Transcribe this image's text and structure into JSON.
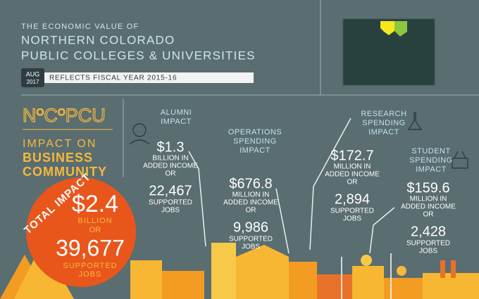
{
  "header": {
    "kicker": "THE ECONOMIC VALUE OF",
    "title_lines": [
      "NORTHERN COLORADO",
      "PUBLIC COLLEGES & UNIVERSITIES"
    ],
    "date_month": "AUG",
    "date_year": "2017",
    "fiscal_note": "REFLECTS FISCAL YEAR 2015-16"
  },
  "brand": {
    "parts": [
      "N",
      "O",
      "C",
      "O",
      "PCU"
    ],
    "heading_lines": [
      "IMPACT ON",
      "BUSINESS",
      "COMMUNITY"
    ]
  },
  "total": {
    "label": "TOTAL IMPACT",
    "amount": "$2.4",
    "unit": "BILLION",
    "or": "OR",
    "jobs": "39,677",
    "jobs_lines": [
      "SUPPORTED",
      "JOBS"
    ]
  },
  "sections": [
    {
      "title_lines": [
        "ALUMNI",
        "IMPACT"
      ],
      "amount": "$1.3",
      "unit_lines": [
        "BILLION IN",
        "ADDED INCOME",
        "OR"
      ],
      "jobs": "22,467",
      "jobs_lines": [
        "SUPPORTED",
        "JOBS"
      ]
    },
    {
      "title_lines": [
        "OPERATIONS",
        "SPENDING",
        "IMPACT"
      ],
      "amount": "$676.8",
      "unit_lines": [
        "MILLION IN",
        "ADDED INCOME",
        "OR"
      ],
      "jobs": "9,986",
      "jobs_lines": [
        "SUPPORTED",
        "JOBS"
      ]
    },
    {
      "title_lines": [
        "RESEARCH",
        "SPENDING",
        "IMPACT"
      ],
      "amount": "$172.7",
      "unit_lines": [
        "MILLION IN",
        "ADDED INCOME",
        "OR"
      ],
      "jobs": "2,894",
      "jobs_lines": [
        "SUPPORTED",
        "JOBS"
      ]
    },
    {
      "title_lines": [
        "STUDENT",
        "SPENDING",
        "IMPACT"
      ],
      "amount": "$159.6",
      "unit_lines": [
        "MILLION IN",
        "ADDED INCOME",
        "OR"
      ],
      "jobs": "2,428",
      "jobs_lines": [
        "SUPPORTED",
        "JOBS"
      ]
    }
  ]
}
